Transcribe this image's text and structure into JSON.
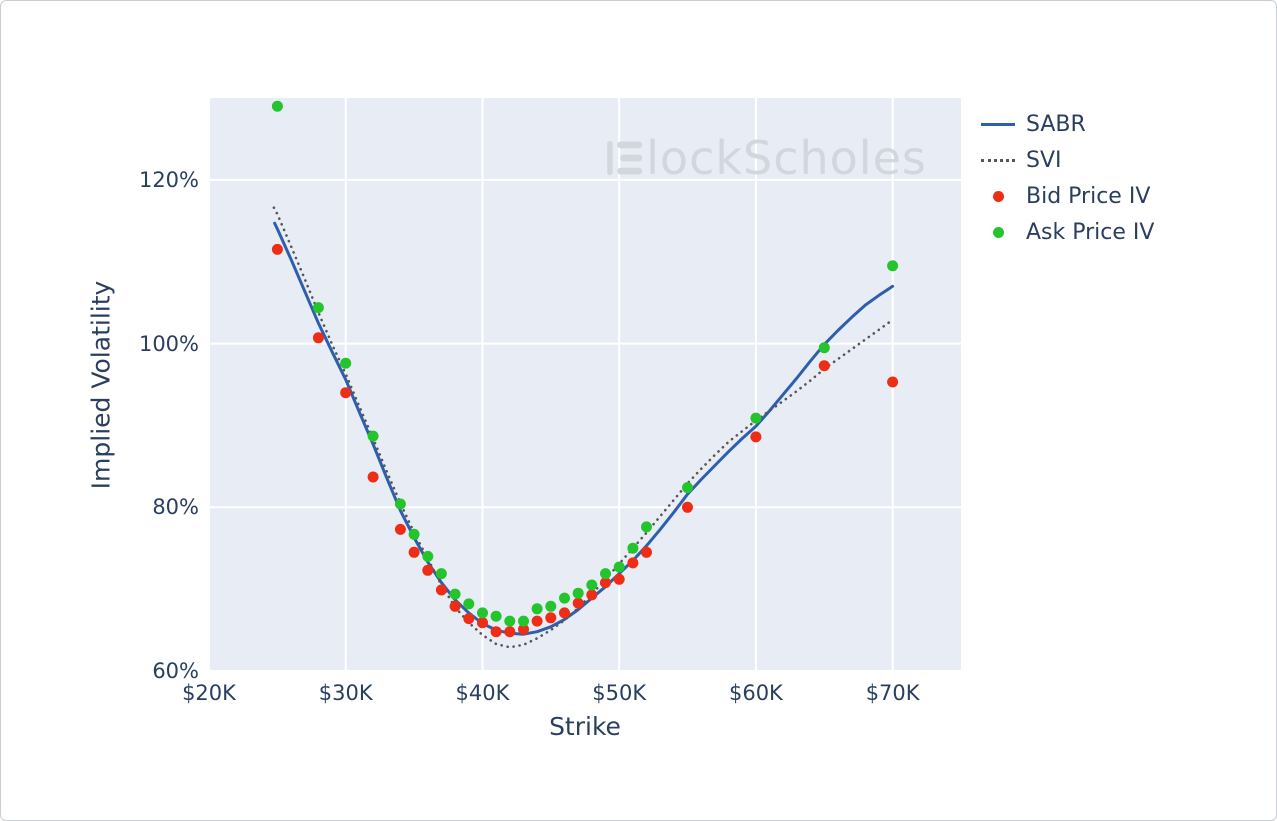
{
  "watermark": {
    "brand_text": "lockScholes",
    "logo": "blockscholes-logo",
    "color": "#d2d6dd"
  },
  "chart_data": {
    "type": "line",
    "title": "",
    "xlabel": "Strike",
    "ylabel": "Implied Volatility",
    "x_range_thousands": [
      20,
      75
    ],
    "y_range_percent": [
      60,
      130
    ],
    "grid": true,
    "plot_bg": "#e8ecf4",
    "grid_color": "#ffffff",
    "axis_text_color": "#2a3f5f",
    "legend_position": "top-right-outside",
    "x_ticks": [
      {
        "value": 20,
        "label": "$20K"
      },
      {
        "value": 30,
        "label": "$30K"
      },
      {
        "value": 40,
        "label": "$40K"
      },
      {
        "value": 50,
        "label": "$50K"
      },
      {
        "value": 60,
        "label": "$60K"
      },
      {
        "value": 70,
        "label": "$70K"
      }
    ],
    "y_ticks": [
      {
        "value": 60,
        "label": "60%"
      },
      {
        "value": 80,
        "label": "80%"
      },
      {
        "value": 100,
        "label": "100%"
      },
      {
        "value": 120,
        "label": "120%"
      }
    ],
    "series": [
      {
        "name": "SABR",
        "type": "line",
        "style": "solid",
        "color": "#2d5fad",
        "width": 3,
        "points": [
          [
            24.8,
            114.7
          ],
          [
            25,
            114.0
          ],
          [
            26,
            110.3
          ],
          [
            27,
            106.4
          ],
          [
            28,
            102.5
          ],
          [
            29,
            99.0
          ],
          [
            30,
            95.6
          ],
          [
            31,
            91.6
          ],
          [
            32,
            87.7
          ],
          [
            33,
            83.6
          ],
          [
            34,
            79.6
          ],
          [
            35,
            76.3
          ],
          [
            36,
            73.3
          ],
          [
            37,
            70.8
          ],
          [
            38,
            68.7
          ],
          [
            39,
            67.1
          ],
          [
            40,
            65.8
          ],
          [
            41,
            65.0
          ],
          [
            42,
            64.6
          ],
          [
            43,
            64.5
          ],
          [
            44,
            64.8
          ],
          [
            45,
            65.4
          ],
          [
            46,
            66.3
          ],
          [
            47,
            67.5
          ],
          [
            48,
            68.9
          ],
          [
            49,
            70.3
          ],
          [
            50,
            71.9
          ],
          [
            51,
            73.5
          ],
          [
            52,
            75.3
          ],
          [
            53,
            77.3
          ],
          [
            54,
            79.4
          ],
          [
            55,
            81.6
          ],
          [
            56,
            83.4
          ],
          [
            57,
            85.1
          ],
          [
            58,
            86.8
          ],
          [
            59,
            88.4
          ],
          [
            60,
            89.9
          ],
          [
            61,
            91.8
          ],
          [
            62,
            93.8
          ],
          [
            63,
            95.8
          ],
          [
            64,
            97.9
          ],
          [
            65,
            99.9
          ],
          [
            66,
            101.6
          ],
          [
            67,
            103.2
          ],
          [
            68,
            104.7
          ],
          [
            69,
            105.9
          ],
          [
            70,
            107.0
          ]
        ]
      },
      {
        "name": "SVI",
        "type": "line",
        "style": "dotted",
        "color": "#565656",
        "width": 2.6,
        "points": [
          [
            24.75,
            116.6
          ],
          [
            25,
            115.8
          ],
          [
            26,
            111.9
          ],
          [
            27,
            107.9
          ],
          [
            28,
            103.8
          ],
          [
            29,
            99.9
          ],
          [
            30,
            96.3
          ],
          [
            31,
            92.3
          ],
          [
            32,
            88.4
          ],
          [
            33,
            84.4
          ],
          [
            34,
            80.5
          ],
          [
            35,
            76.9
          ],
          [
            36,
            73.7
          ],
          [
            37,
            70.5
          ],
          [
            38,
            67.8
          ],
          [
            39,
            65.9
          ],
          [
            40,
            64.4
          ],
          [
            41,
            63.3
          ],
          [
            42,
            62.9
          ],
          [
            43,
            63.2
          ],
          [
            44,
            64.0
          ],
          [
            45,
            65.0
          ],
          [
            46,
            66.2
          ],
          [
            47,
            67.7
          ],
          [
            48,
            69.4
          ],
          [
            49,
            71.2
          ],
          [
            50,
            73.1
          ],
          [
            51,
            75.0
          ],
          [
            52,
            76.9
          ],
          [
            53,
            78.9
          ],
          [
            54,
            80.9
          ],
          [
            55,
            82.9
          ],
          [
            56,
            84.7
          ],
          [
            57,
            86.4
          ],
          [
            58,
            88.0
          ],
          [
            59,
            89.3
          ],
          [
            60,
            90.6
          ],
          [
            61,
            91.8
          ],
          [
            62,
            93.0
          ],
          [
            63,
            94.2
          ],
          [
            64,
            95.5
          ],
          [
            65,
            96.9
          ],
          [
            66,
            98.1
          ],
          [
            67,
            99.3
          ],
          [
            68,
            100.5
          ],
          [
            69,
            101.7
          ],
          [
            70,
            102.9
          ]
        ]
      },
      {
        "name": "Bid Price IV",
        "type": "scatter",
        "color": "#ed2d16",
        "marker_radius": 5.5,
        "points": [
          [
            25,
            111.5
          ],
          [
            28,
            100.7
          ],
          [
            30,
            94.0
          ],
          [
            32,
            83.7
          ],
          [
            34,
            77.3
          ],
          [
            35,
            74.5
          ],
          [
            36,
            72.3
          ],
          [
            37,
            69.9
          ],
          [
            38,
            67.9
          ],
          [
            39,
            66.4
          ],
          [
            40,
            65.9
          ],
          [
            41,
            64.8
          ],
          [
            42,
            64.8
          ],
          [
            43,
            65.1
          ],
          [
            44,
            66.1
          ],
          [
            45,
            66.5
          ],
          [
            46,
            67.1
          ],
          [
            47,
            68.3
          ],
          [
            48,
            69.3
          ],
          [
            49,
            70.8
          ],
          [
            50,
            71.2
          ],
          [
            51,
            73.2
          ],
          [
            52,
            74.5
          ],
          [
            55,
            80.0
          ],
          [
            60,
            88.6
          ],
          [
            65,
            97.3
          ],
          [
            70,
            95.3
          ]
        ]
      },
      {
        "name": "Ask Price IV",
        "type": "scatter",
        "color": "#24c52c",
        "marker_radius": 5.5,
        "points": [
          [
            25,
            129.0
          ],
          [
            28,
            104.4
          ],
          [
            30,
            97.6
          ],
          [
            32,
            88.7
          ],
          [
            34,
            80.4
          ],
          [
            35,
            76.7
          ],
          [
            36,
            74.0
          ],
          [
            37,
            71.9
          ],
          [
            38,
            69.4
          ],
          [
            39,
            68.2
          ],
          [
            40,
            67.1
          ],
          [
            41,
            66.7
          ],
          [
            42,
            66.1
          ],
          [
            43,
            66.1
          ],
          [
            44,
            67.6
          ],
          [
            45,
            67.9
          ],
          [
            46,
            68.9
          ],
          [
            47,
            69.5
          ],
          [
            48,
            70.5
          ],
          [
            49,
            71.9
          ],
          [
            50,
            72.7
          ],
          [
            51,
            75.0
          ],
          [
            52,
            77.6
          ],
          [
            55,
            82.4
          ],
          [
            60,
            90.9
          ],
          [
            65,
            99.5
          ],
          [
            70,
            109.5
          ]
        ]
      }
    ]
  }
}
